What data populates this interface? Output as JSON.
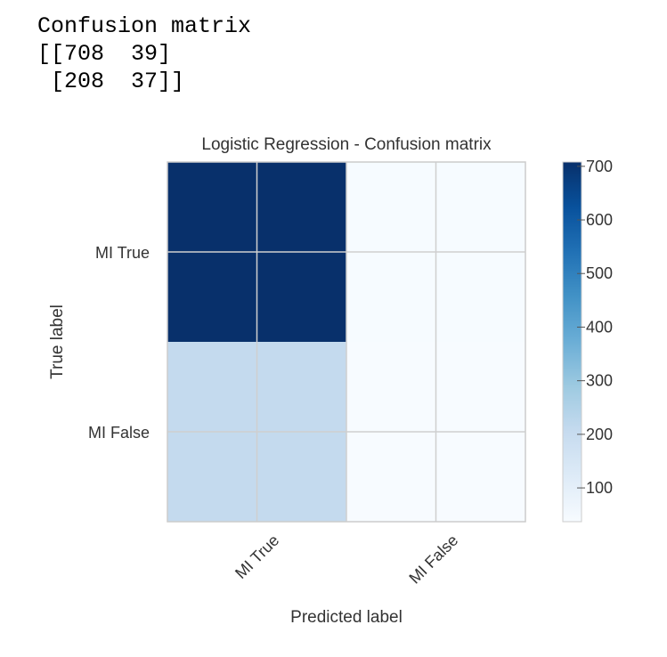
{
  "console_output": {
    "lines": [
      "Confusion matrix",
      "[[708  39]",
      " [208  37]]"
    ]
  },
  "chart_data": {
    "type": "heatmap",
    "title": "Logistic Regression - Confusion matrix",
    "xlabel": "Predicted label",
    "ylabel": "True label",
    "x_categories": [
      "MI True",
      "MI False"
    ],
    "y_categories": [
      "MI True",
      "MI False"
    ],
    "values": [
      [
        708,
        39
      ],
      [
        208,
        37
      ]
    ],
    "colormap": "Blues",
    "color_range": [
      37,
      708
    ],
    "colorbar_ticks": [
      100,
      200,
      300,
      400,
      500,
      600,
      700
    ],
    "grid": true,
    "colors": {
      "max": "#08306b",
      "min": "#f7fbff"
    }
  }
}
